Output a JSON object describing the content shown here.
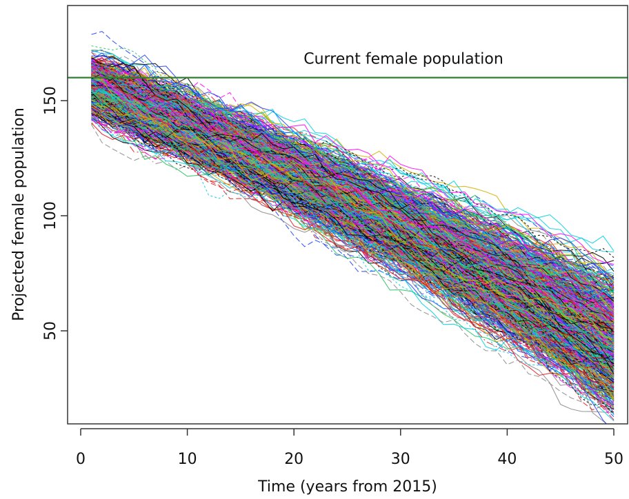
{
  "chart_data": {
    "type": "line",
    "title": "",
    "xlabel": "Time (years from 2015)",
    "ylabel": "Projected female population",
    "xlim": [
      1,
      50
    ],
    "ylim": [
      10,
      185
    ],
    "x_ticks": [
      0,
      10,
      20,
      30,
      40,
      50
    ],
    "y_ticks": [
      50,
      100,
      150
    ],
    "reference_line": {
      "y": 160,
      "label": "Current female population",
      "color": "#2e7d32"
    },
    "grid": false,
    "legend": "none",
    "simulation": {
      "description_visible": false,
      "n_trajectories": 1000,
      "x_start": 1,
      "x_end": 50,
      "start_mean": 156,
      "start_spread": 8,
      "end_mean": 45,
      "end_spread": 16,
      "colors": [
        "#000000",
        "#e41a1c",
        "#22c55e",
        "#1f3fff",
        "#00d0e0",
        "#ff00ff",
        "#d4b000",
        "#888888"
      ]
    }
  }
}
